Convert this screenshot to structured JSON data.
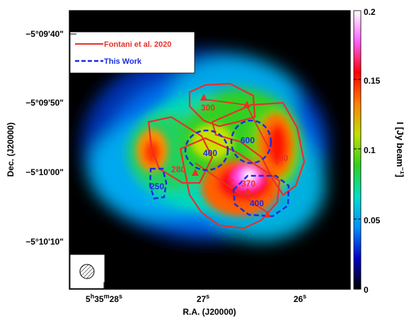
{
  "chart_data": {
    "type": "heatmap",
    "xlabel": "R.A. (J20000)",
    "ylabel": "Dec. (J20000)",
    "x_tick_labels": [
      "5h35m28s",
      "27s",
      "26s"
    ],
    "y_tick_labels": [
      "−5°09'40\"",
      "−5°09'50\"",
      "−5°10'00\"",
      "−5°10'10\""
    ],
    "colorbar": {
      "label": "I [Jy beam⁻¹]",
      "range": [
        0,
        0.2
      ],
      "tick_labels": [
        "0",
        "0.05",
        "0.1",
        "0.15",
        "0.2"
      ],
      "colormap": [
        "#000000",
        "#0000c8",
        "#0090ff",
        "#00e0c8",
        "#30d020",
        "#c0e000",
        "#ff8000",
        "#ff0000",
        "#ff60ff",
        "#ffffff"
      ]
    },
    "legend": {
      "placement": "top-left",
      "entries": [
        {
          "name": "Fontani et al. 2020",
          "color": "#e8302a",
          "style": "solid"
        },
        {
          "name": "This Work",
          "color": "#1a2ee0",
          "style": "dashed"
        }
      ]
    },
    "annotations": {
      "red": [
        "300",
        "280",
        "370",
        "30"
      ],
      "blue": [
        "600",
        "400",
        "250",
        "400"
      ]
    },
    "beam_ellipse": "hatched"
  }
}
